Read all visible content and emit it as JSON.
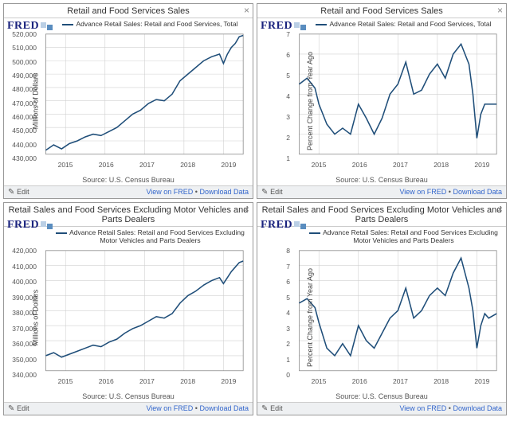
{
  "common": {
    "x_labels": [
      "2015",
      "2016",
      "2017",
      "2018",
      "2019"
    ],
    "source": "Source: U.S. Census Bureau",
    "edit": "Edit",
    "view": "View on FRED",
    "download": "Download Data",
    "line_color": "#1f4e79",
    "grid_color": "#d0d0d0",
    "axis_color": "#888",
    "bg_color": "#ffffff",
    "tick_fontsize": 8.5,
    "label_fontsize": 9
  },
  "panels": [
    {
      "title": "Retail and Food Services Sales",
      "legend": "Advance Retail Sales: Retail and Food Services, Total",
      "ylabel": "Millions of Dollars",
      "ylim": [
        430000,
        520000
      ],
      "yticks": [
        430000,
        440000,
        450000,
        460000,
        470000,
        480000,
        490000,
        500000,
        510000,
        520000
      ],
      "ytick_labels": [
        "430,000",
        "440,000",
        "450,000",
        "460,000",
        "470,000",
        "480,000",
        "490,000",
        "500,000",
        "510,000",
        "520,000"
      ],
      "xlim": [
        2014.5,
        2019.5
      ],
      "series": [
        [
          2014.5,
          433000
        ],
        [
          2014.7,
          437000
        ],
        [
          2014.9,
          434000
        ],
        [
          2015.1,
          438000
        ],
        [
          2015.3,
          440000
        ],
        [
          2015.5,
          443000
        ],
        [
          2015.7,
          445000
        ],
        [
          2015.9,
          444000
        ],
        [
          2016.1,
          447000
        ],
        [
          2016.3,
          450000
        ],
        [
          2016.5,
          455000
        ],
        [
          2016.7,
          460000
        ],
        [
          2016.9,
          463000
        ],
        [
          2017.1,
          468000
        ],
        [
          2017.3,
          471000
        ],
        [
          2017.5,
          470000
        ],
        [
          2017.7,
          475000
        ],
        [
          2017.9,
          485000
        ],
        [
          2018.1,
          490000
        ],
        [
          2018.3,
          495000
        ],
        [
          2018.5,
          500000
        ],
        [
          2018.7,
          503000
        ],
        [
          2018.9,
          505000
        ],
        [
          2019.0,
          498000
        ],
        [
          2019.1,
          505000
        ],
        [
          2019.2,
          510000
        ],
        [
          2019.3,
          513000
        ],
        [
          2019.4,
          518000
        ],
        [
          2019.5,
          519000
        ]
      ]
    },
    {
      "title": "Retail and Food Services Sales",
      "legend": "Advance Retail Sales: Retail and Food Services, Total",
      "ylabel": "Percent Change from Year Ago",
      "ylim": [
        1,
        7
      ],
      "yticks": [
        1,
        2,
        3,
        4,
        5,
        6,
        7
      ],
      "ytick_labels": [
        "1",
        "2",
        "3",
        "4",
        "5",
        "6",
        "7"
      ],
      "xlim": [
        2014.5,
        2019.5
      ],
      "series": [
        [
          2014.5,
          4.5
        ],
        [
          2014.7,
          4.8
        ],
        [
          2014.9,
          4.3
        ],
        [
          2015.0,
          3.5
        ],
        [
          2015.2,
          2.5
        ],
        [
          2015.4,
          2.0
        ],
        [
          2015.6,
          2.3
        ],
        [
          2015.8,
          2.0
        ],
        [
          2016.0,
          3.5
        ],
        [
          2016.2,
          2.8
        ],
        [
          2016.4,
          2.0
        ],
        [
          2016.6,
          2.8
        ],
        [
          2016.8,
          4.0
        ],
        [
          2017.0,
          4.5
        ],
        [
          2017.2,
          5.6
        ],
        [
          2017.4,
          4.0
        ],
        [
          2017.6,
          4.2
        ],
        [
          2017.8,
          5.0
        ],
        [
          2018.0,
          5.5
        ],
        [
          2018.2,
          4.8
        ],
        [
          2018.4,
          6.0
        ],
        [
          2018.6,
          6.5
        ],
        [
          2018.8,
          5.5
        ],
        [
          2018.9,
          4.0
        ],
        [
          2019.0,
          1.8
        ],
        [
          2019.1,
          3.0
        ],
        [
          2019.2,
          3.5
        ],
        [
          2019.3,
          3.5
        ],
        [
          2019.5,
          3.5
        ]
      ]
    },
    {
      "title": "Retail Sales and Food Services Excluding Motor Vehicles and Parts Dealers",
      "legend": "Advance Retail Sales: Retail and Food Services Excluding Motor Vehicles and Parts Dealers",
      "ylabel": "Millions of Dollars",
      "ylim": [
        340000,
        420000
      ],
      "yticks": [
        340000,
        350000,
        360000,
        370000,
        380000,
        390000,
        400000,
        410000,
        420000
      ],
      "ytick_labels": [
        "340,000",
        "350,000",
        "360,000",
        "370,000",
        "380,000",
        "390,000",
        "400,000",
        "410,000",
        "420,000"
      ],
      "xlim": [
        2014.5,
        2019.5
      ],
      "series": [
        [
          2014.5,
          350000
        ],
        [
          2014.7,
          352000
        ],
        [
          2014.9,
          349000
        ],
        [
          2015.1,
          351000
        ],
        [
          2015.3,
          353000
        ],
        [
          2015.5,
          355000
        ],
        [
          2015.7,
          357000
        ],
        [
          2015.9,
          356000
        ],
        [
          2016.1,
          359000
        ],
        [
          2016.3,
          361000
        ],
        [
          2016.5,
          365000
        ],
        [
          2016.7,
          368000
        ],
        [
          2016.9,
          370000
        ],
        [
          2017.1,
          373000
        ],
        [
          2017.3,
          376000
        ],
        [
          2017.5,
          375000
        ],
        [
          2017.7,
          378000
        ],
        [
          2017.9,
          385000
        ],
        [
          2018.1,
          390000
        ],
        [
          2018.3,
          393000
        ],
        [
          2018.5,
          397000
        ],
        [
          2018.7,
          400000
        ],
        [
          2018.9,
          402000
        ],
        [
          2019.0,
          398000
        ],
        [
          2019.1,
          402000
        ],
        [
          2019.2,
          406000
        ],
        [
          2019.3,
          409000
        ],
        [
          2019.4,
          412000
        ],
        [
          2019.5,
          413000
        ]
      ]
    },
    {
      "title": "Retail Sales and Food Services Excluding Motor Vehicles and Parts Dealers",
      "legend": "Advance Retail Sales: Retail and Food Services Excluding Motor Vehicles and Parts Dealers",
      "ylabel": "Percent Change from Year Ago",
      "ylim": [
        0,
        8
      ],
      "yticks": [
        0,
        1,
        2,
        3,
        4,
        5,
        6,
        7,
        8
      ],
      "ytick_labels": [
        "0",
        "1",
        "2",
        "3",
        "4",
        "5",
        "6",
        "7",
        "8"
      ],
      "xlim": [
        2014.5,
        2019.5
      ],
      "series": [
        [
          2014.5,
          4.5
        ],
        [
          2014.7,
          4.8
        ],
        [
          2014.9,
          4.2
        ],
        [
          2015.0,
          3.2
        ],
        [
          2015.2,
          1.5
        ],
        [
          2015.4,
          1.0
        ],
        [
          2015.6,
          1.8
        ],
        [
          2015.8,
          1.0
        ],
        [
          2016.0,
          3.0
        ],
        [
          2016.2,
          2.0
        ],
        [
          2016.4,
          1.5
        ],
        [
          2016.6,
          2.5
        ],
        [
          2016.8,
          3.5
        ],
        [
          2017.0,
          4.0
        ],
        [
          2017.2,
          5.5
        ],
        [
          2017.4,
          3.5
        ],
        [
          2017.6,
          4.0
        ],
        [
          2017.8,
          5.0
        ],
        [
          2018.0,
          5.5
        ],
        [
          2018.2,
          5.0
        ],
        [
          2018.4,
          6.5
        ],
        [
          2018.6,
          7.5
        ],
        [
          2018.8,
          5.5
        ],
        [
          2018.9,
          4.0
        ],
        [
          2019.0,
          1.5
        ],
        [
          2019.1,
          3.0
        ],
        [
          2019.2,
          3.8
        ],
        [
          2019.3,
          3.5
        ],
        [
          2019.5,
          3.8
        ]
      ]
    }
  ]
}
